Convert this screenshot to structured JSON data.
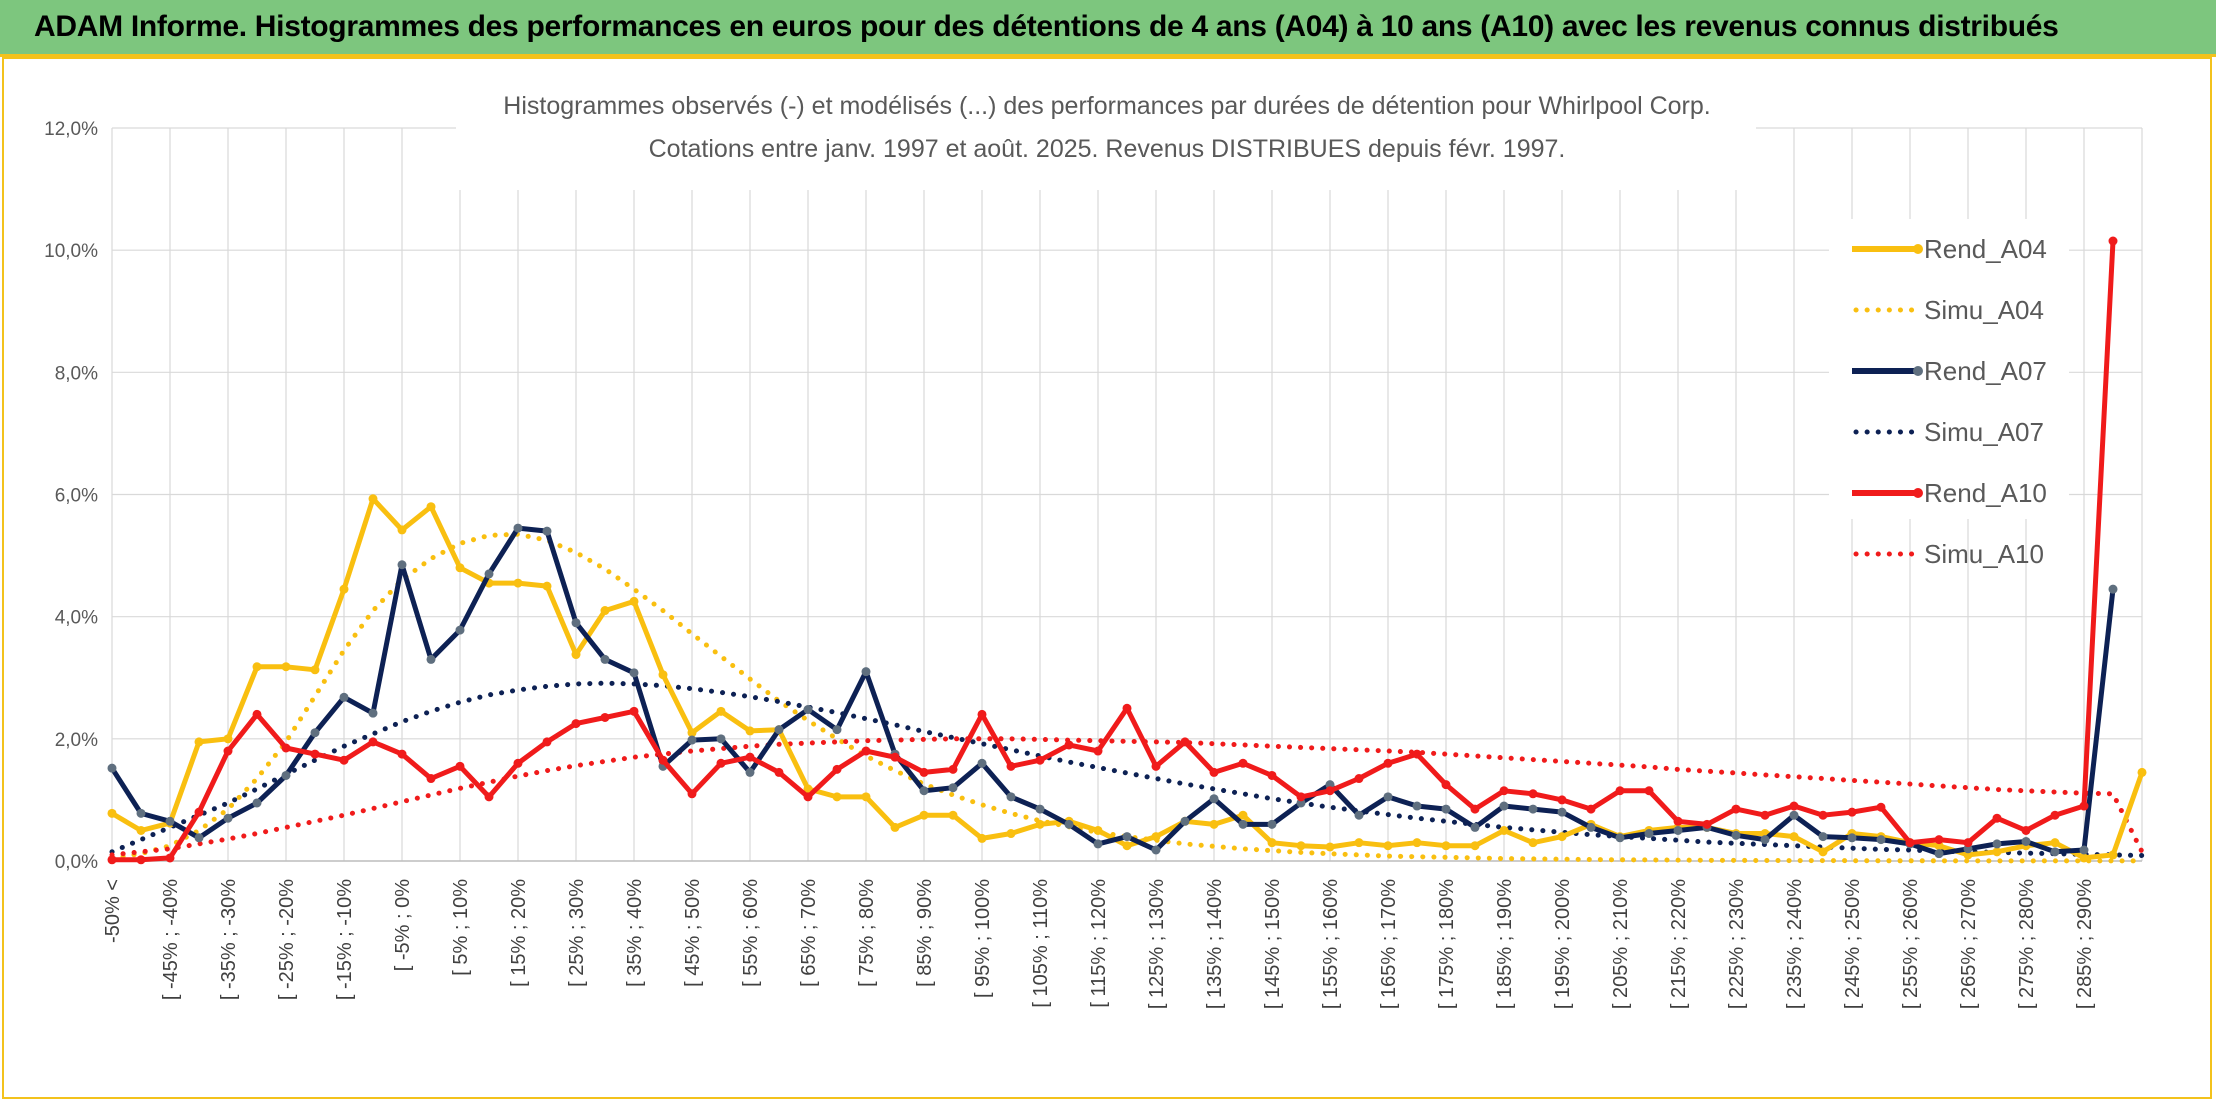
{
  "header": {
    "title": "ADAM Informe. Histogrammes des performances en euros pour des détentions de 4 ans (A04) à 10 ans (A10) avec les revenus connus distribués"
  },
  "colors": {
    "A04": "#f9bf10",
    "A07": "#0d2154",
    "A07_marker": "#5f6f7f",
    "A10": "#f01b1b",
    "banner": "#7dc67e",
    "border": "#f3c21c",
    "grid": "#d9d9d9"
  },
  "chart_data": {
    "type": "line",
    "title": "Histogrammes observés (-) et modélisés (...) des performances par durées de détention pour Whirlpool Corp.",
    "subtitle": "Cotations entre janv. 1997 et août. 2025. Revenus DISTRIBUES depuis févr. 1997.",
    "xlabel": "",
    "ylabel": "",
    "ylim": [
      0,
      12
    ],
    "yticks": [
      "0,0%",
      "2,0%",
      "4,0%",
      "6,0%",
      "8,0%",
      "10,0%",
      "12,0%"
    ],
    "grid": true,
    "legend_position": "right",
    "x_labels": [
      "-50% <",
      "[ -45% ; -40%",
      "[ -35% ; -30%",
      "[ -25% ; -20%",
      "[ -15% ; -10%",
      "[ -5% ; 0%",
      "[ 5% ; 10%",
      "[ 15% ; 20%",
      "[ 25% ; 30%",
      "[ 35% ; 40%",
      "[ 45% ; 50%",
      "[ 55% ; 60%",
      "[ 65% ; 70%",
      "[ 75% ; 80%",
      "[ 85% ; 90%",
      "[ 95% ; 100%",
      "[ 105% ; 110%",
      "[ 115% ; 120%",
      "[ 125% ; 130%",
      "[ 135% ; 140%",
      "[ 145% ; 150%",
      "[ 155% ; 160%",
      "[ 165% ; 170%",
      "[ 175% ; 180%",
      "[ 185% ; 190%",
      "[ 195% ; 200%",
      "[ 205% ; 210%",
      "[ 215% ; 220%",
      "[ 225% ; 230%",
      "[ 235% ; 240%",
      "[ 245% ; 250%",
      "[ 255% ; 260%",
      "[ 265% ; 270%",
      "[ 275% ; 280%",
      "[ 285% ; 290%"
    ],
    "series": [
      {
        "name": "Rend_A04",
        "style": "solid",
        "color": "#f9bf10",
        "values": [
          0.78,
          0.5,
          0.62,
          1.95,
          2.0,
          3.18,
          3.18,
          3.13,
          4.45,
          5.93,
          5.42,
          5.8,
          4.8,
          4.55,
          4.55,
          4.5,
          3.38,
          4.1,
          4.25,
          3.05,
          2.1,
          2.45,
          2.13,
          2.15,
          1.18,
          1.05,
          1.05,
          0.55,
          0.75,
          0.75,
          0.37,
          0.45,
          0.6,
          0.65,
          0.5,
          0.25,
          0.4,
          0.65,
          0.6,
          0.75,
          0.3,
          0.25,
          0.23,
          0.3,
          0.25,
          0.3,
          0.25,
          0.25,
          0.5,
          0.3,
          0.4,
          0.6,
          0.4,
          0.5,
          0.55,
          0.55,
          0.45,
          0.45,
          0.4,
          0.15,
          0.45,
          0.4,
          0.3,
          0.25,
          0.1,
          0.15,
          0.25,
          0.3,
          0.05,
          0.1,
          1.45
        ]
      },
      {
        "name": "Simu_A04",
        "style": "dotted",
        "color": "#f9bf10",
        "values": [
          0.05,
          0.12,
          0.25,
          0.5,
          0.85,
          1.35,
          1.95,
          2.7,
          3.45,
          4.1,
          4.6,
          4.95,
          5.2,
          5.33,
          5.35,
          5.25,
          5.05,
          4.78,
          4.45,
          4.1,
          3.72,
          3.35,
          2.98,
          2.62,
          2.3,
          2.0,
          1.72,
          1.48,
          1.26,
          1.08,
          0.92,
          0.78,
          0.66,
          0.56,
          0.47,
          0.4,
          0.34,
          0.28,
          0.24,
          0.2,
          0.17,
          0.14,
          0.12,
          0.1,
          0.08,
          0.07,
          0.06,
          0.05,
          0.04,
          0.035,
          0.03,
          0.025,
          0.02,
          0.018,
          0.015,
          0.012,
          0.01,
          0.008,
          0.007,
          0.006,
          0.005,
          0.004,
          0.003,
          0.003,
          0.002,
          0.002,
          0.002,
          0.001,
          0.001,
          0.001,
          0.001
        ]
      },
      {
        "name": "Rend_A07",
        "style": "solid",
        "color": "#0d2154",
        "values": [
          1.52,
          0.78,
          0.65,
          0.38,
          0.7,
          0.95,
          1.4,
          2.1,
          2.68,
          2.42,
          4.85,
          3.3,
          3.78,
          4.7,
          5.45,
          5.4,
          3.9,
          3.3,
          3.08,
          1.55,
          1.98,
          2.0,
          1.45,
          2.15,
          2.48,
          2.15,
          3.1,
          1.75,
          1.15,
          1.2,
          1.6,
          1.05,
          0.85,
          0.6,
          0.28,
          0.4,
          0.18,
          0.65,
          1.02,
          0.6,
          0.6,
          0.95,
          1.25,
          0.75,
          1.05,
          0.9,
          0.85,
          0.55,
          0.9,
          0.85,
          0.8,
          0.55,
          0.38,
          0.45,
          0.5,
          0.55,
          0.42,
          0.35,
          0.75,
          0.4,
          0.38,
          0.35,
          0.28,
          0.12,
          0.2,
          0.28,
          0.32,
          0.15,
          0.18,
          4.45
        ]
      },
      {
        "name": "Simu_A07",
        "style": "dotted",
        "color": "#0d2154",
        "values": [
          0.15,
          0.35,
          0.55,
          0.75,
          0.95,
          1.18,
          1.42,
          1.65,
          1.88,
          2.08,
          2.28,
          2.45,
          2.6,
          2.72,
          2.8,
          2.86,
          2.9,
          2.91,
          2.9,
          2.87,
          2.82,
          2.76,
          2.69,
          2.61,
          2.52,
          2.43,
          2.33,
          2.23,
          2.12,
          2.02,
          1.92,
          1.82,
          1.72,
          1.62,
          1.53,
          1.44,
          1.35,
          1.26,
          1.18,
          1.1,
          1.02,
          0.95,
          0.88,
          0.82,
          0.76,
          0.7,
          0.65,
          0.6,
          0.55,
          0.51,
          0.47,
          0.43,
          0.4,
          0.37,
          0.34,
          0.31,
          0.29,
          0.27,
          0.25,
          0.23,
          0.21,
          0.19,
          0.18,
          0.16,
          0.15,
          0.14,
          0.13,
          0.12,
          0.11,
          0.1,
          0.09
        ]
      },
      {
        "name": "Rend_A10",
        "style": "solid",
        "color": "#f01b1b",
        "values": [
          0.02,
          0.02,
          0.05,
          0.8,
          1.8,
          2.4,
          1.85,
          1.75,
          1.65,
          1.95,
          1.75,
          1.35,
          1.55,
          1.05,
          1.6,
          1.95,
          2.25,
          2.35,
          2.45,
          1.65,
          1.1,
          1.6,
          1.7,
          1.45,
          1.05,
          1.5,
          1.8,
          1.7,
          1.45,
          1.5,
          2.4,
          1.55,
          1.65,
          1.9,
          1.8,
          2.5,
          1.55,
          1.95,
          1.45,
          1.6,
          1.4,
          1.05,
          1.15,
          1.35,
          1.6,
          1.75,
          1.25,
          0.85,
          1.15,
          1.1,
          1.0,
          0.85,
          1.15,
          1.15,
          0.65,
          0.6,
          0.85,
          0.75,
          0.9,
          0.75,
          0.8,
          0.88,
          0.3,
          0.35,
          0.3,
          0.7,
          0.5,
          0.75,
          0.9,
          10.15
        ]
      },
      {
        "name": "Simu_A10",
        "style": "dotted",
        "color": "#f01b1b",
        "values": [
          0.1,
          0.15,
          0.2,
          0.28,
          0.36,
          0.45,
          0.55,
          0.65,
          0.75,
          0.86,
          0.97,
          1.08,
          1.19,
          1.29,
          1.39,
          1.48,
          1.56,
          1.63,
          1.7,
          1.75,
          1.8,
          1.84,
          1.88,
          1.91,
          1.93,
          1.95,
          1.97,
          1.98,
          1.99,
          2.0,
          2.0,
          2.0,
          1.99,
          1.98,
          1.97,
          1.96,
          1.95,
          1.94,
          1.92,
          1.9,
          1.88,
          1.86,
          1.84,
          1.82,
          1.8,
          1.78,
          1.75,
          1.72,
          1.69,
          1.66,
          1.63,
          1.6,
          1.57,
          1.54,
          1.5,
          1.47,
          1.44,
          1.41,
          1.38,
          1.35,
          1.32,
          1.29,
          1.26,
          1.23,
          1.2,
          1.17,
          1.15,
          1.13,
          1.11,
          1.1,
          0.15
        ]
      }
    ]
  }
}
